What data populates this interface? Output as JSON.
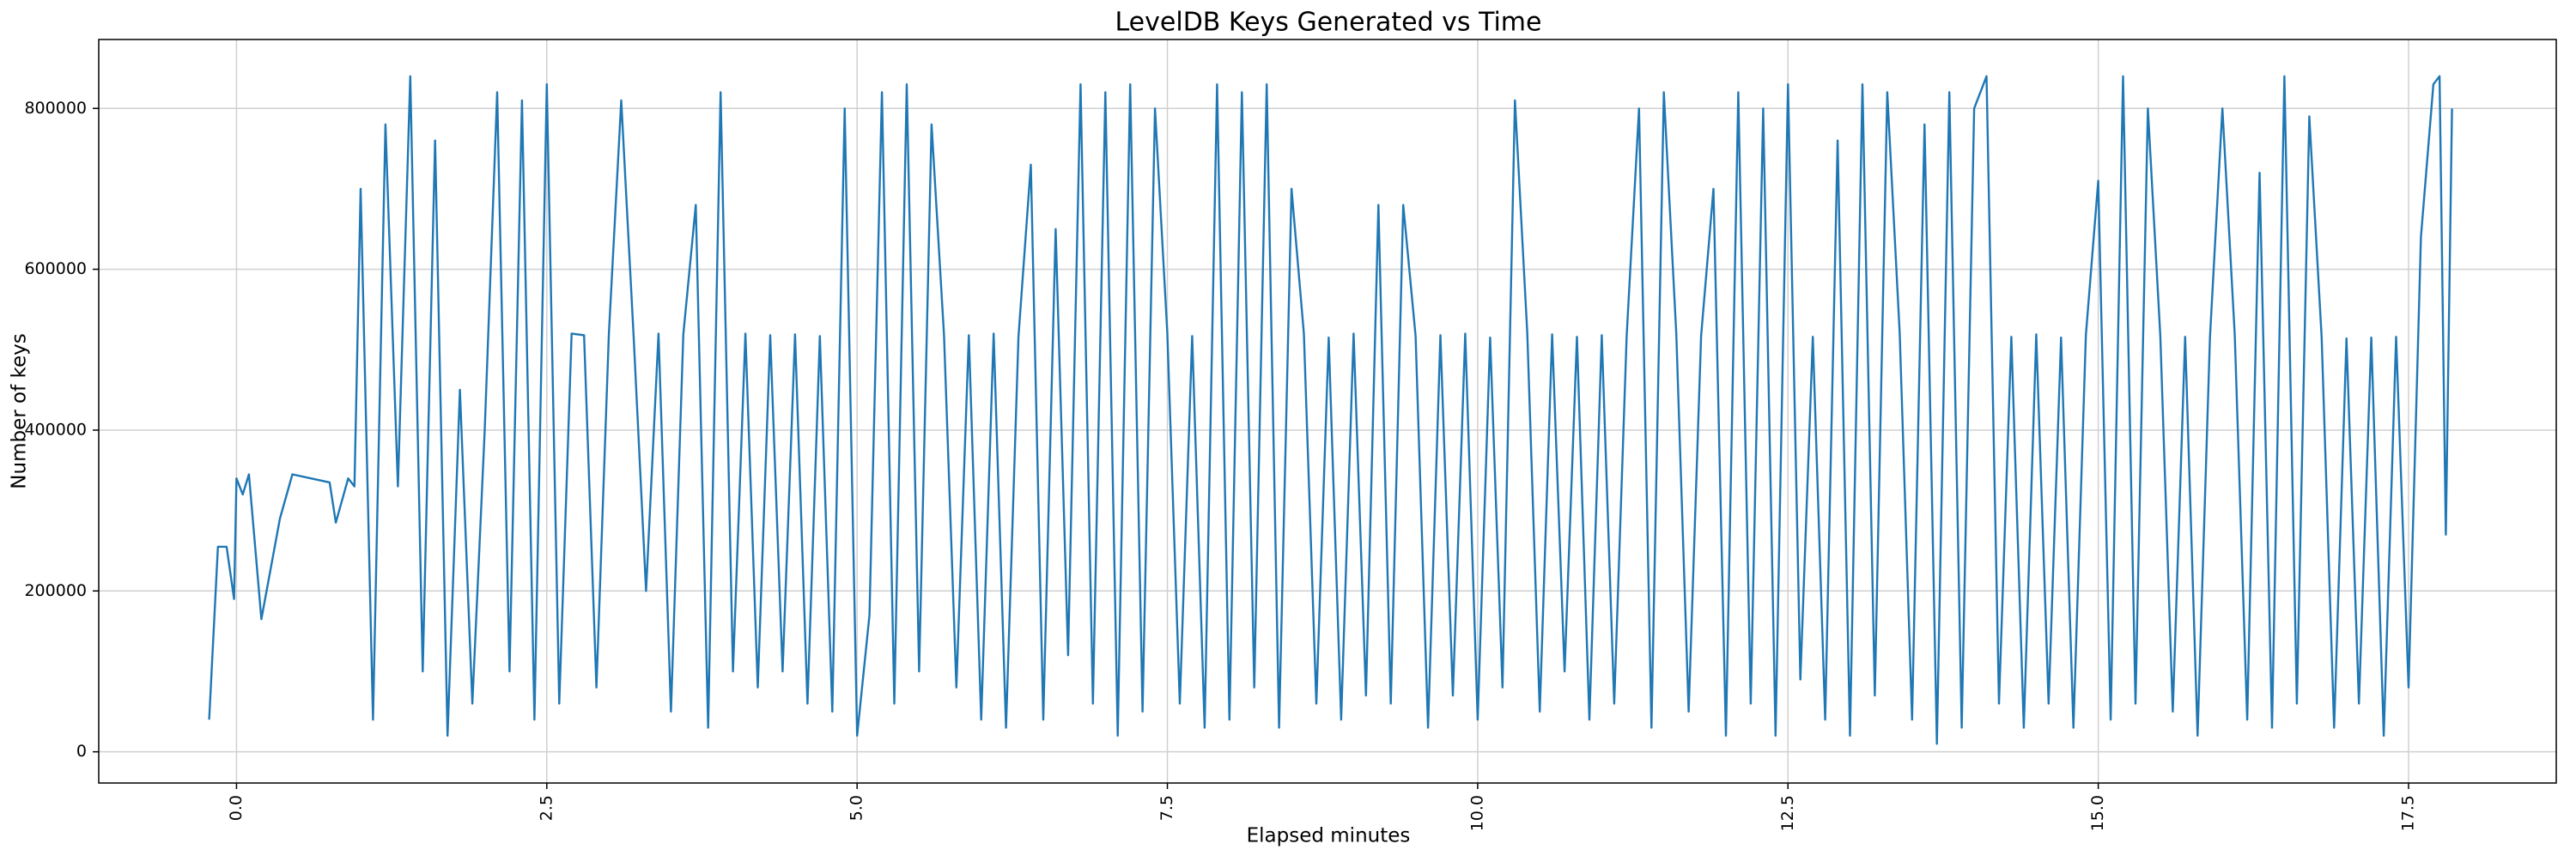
{
  "chart_data": {
    "type": "line",
    "title": "LevelDB Keys Generated vs Time",
    "x_label": "Elapsed minutes",
    "y_label": "Number of keys",
    "color": "#1f77b4",
    "grid": true,
    "xlim": [
      -1.11,
      18.69
    ],
    "ylim": [
      -38800,
      885700
    ],
    "xticks": [
      {
        "value": 0,
        "label": "0.0"
      },
      2.5,
      {
        "value": 5,
        "label": "5.0"
      },
      7.5,
      {
        "value": 10,
        "label": "10.0"
      },
      12.5,
      {
        "value": 15,
        "label": "15.0"
      },
      17.5
    ],
    "yticks": [
      0,
      200000,
      400000,
      600000,
      800000
    ],
    "x": [
      -0.22,
      -0.15,
      -0.08,
      -0.02,
      0.0,
      0.05,
      0.1,
      0.2,
      0.35,
      0.45,
      0.6,
      0.75,
      0.8,
      0.9,
      0.95,
      1.0,
      1.1,
      1.2,
      1.3,
      1.4,
      1.5,
      1.6,
      1.7,
      1.8,
      1.9,
      2.0,
      2.1,
      2.2,
      2.3,
      2.4,
      2.5,
      2.6,
      2.7,
      2.8,
      2.9,
      3.0,
      3.1,
      3.2,
      3.3,
      3.4,
      3.5,
      3.6,
      3.7,
      3.8,
      3.9,
      4.0,
      4.1,
      4.2,
      4.3,
      4.4,
      4.5,
      4.6,
      4.7,
      4.8,
      4.9,
      5.0,
      5.1,
      5.2,
      5.3,
      5.4,
      5.5,
      5.6,
      5.7,
      5.8,
      5.9,
      6.0,
      6.1,
      6.2,
      6.3,
      6.4,
      6.5,
      6.6,
      6.7,
      6.8,
      6.9,
      7.0,
      7.1,
      7.2,
      7.3,
      7.4,
      7.5,
      7.6,
      7.7,
      7.8,
      7.9,
      8.0,
      8.1,
      8.2,
      8.3,
      8.4,
      8.5,
      8.6,
      8.7,
      8.8,
      8.9,
      9.0,
      9.1,
      9.2,
      9.3,
      9.4,
      9.5,
      9.6,
      9.7,
      9.8,
      9.9,
      10.0,
      10.1,
      10.2,
      10.3,
      10.4,
      10.5,
      10.6,
      10.7,
      10.8,
      10.9,
      11.0,
      11.1,
      11.2,
      11.3,
      11.4,
      11.5,
      11.6,
      11.7,
      11.8,
      11.9,
      12.0,
      12.1,
      12.2,
      12.3,
      12.4,
      12.5,
      12.6,
      12.7,
      12.8,
      12.9,
      13.0,
      13.1,
      13.2,
      13.3,
      13.4,
      13.5,
      13.6,
      13.7,
      13.8,
      13.9,
      14.0,
      14.1,
      14.2,
      14.3,
      14.4,
      14.5,
      14.6,
      14.7,
      14.8,
      14.9,
      15.0,
      15.1,
      15.2,
      15.3,
      15.4,
      15.5,
      15.6,
      15.7,
      15.8,
      15.9,
      16.0,
      16.1,
      16.2,
      16.3,
      16.4,
      16.5,
      16.6,
      16.7,
      16.8,
      16.9,
      17.0,
      17.1,
      17.2,
      17.3,
      17.4,
      17.5,
      17.6,
      17.7,
      17.75,
      17.8,
      17.85
    ],
    "values": [
      40000,
      255000,
      255000,
      190000,
      340000,
      320000,
      345000,
      165000,
      290000,
      345000,
      340000,
      335000,
      285000,
      340000,
      330000,
      700000,
      40000,
      780000,
      330000,
      840000,
      100000,
      760000,
      20000,
      450000,
      60000,
      400000,
      820000,
      100000,
      810000,
      40000,
      830000,
      60000,
      520000,
      518000,
      80000,
      520000,
      810000,
      515000,
      200000,
      520000,
      50000,
      519000,
      680000,
      30000,
      820000,
      100000,
      520000,
      80000,
      518000,
      100000,
      519000,
      60000,
      517000,
      50000,
      800000,
      20000,
      170000,
      820000,
      60000,
      830000,
      100000,
      780000,
      518000,
      80000,
      518000,
      40000,
      520000,
      30000,
      516000,
      730000,
      40000,
      650000,
      120000,
      830000,
      60000,
      820000,
      20000,
      830000,
      50000,
      800000,
      520000,
      60000,
      517000,
      30000,
      830000,
      40000,
      820000,
      80000,
      830000,
      30000,
      700000,
      520000,
      60000,
      515000,
      40000,
      520000,
      70000,
      680000,
      60000,
      680000,
      517000,
      30000,
      518000,
      70000,
      520000,
      40000,
      515000,
      80000,
      810000,
      520000,
      50000,
      519000,
      100000,
      516000,
      40000,
      518000,
      60000,
      517000,
      800000,
      30000,
      820000,
      520000,
      50000,
      517000,
      700000,
      20000,
      820000,
      60000,
      800000,
      20000,
      830000,
      90000,
      516000,
      40000,
      760000,
      20000,
      830000,
      70000,
      820000,
      520000,
      40000,
      780000,
      10000,
      820000,
      30000,
      800000,
      840000,
      60000,
      516000,
      30000,
      519000,
      60000,
      515000,
      30000,
      518000,
      710000,
      40000,
      840000,
      60000,
      800000,
      517000,
      50000,
      516000,
      20000,
      515000,
      800000,
      518000,
      40000,
      720000,
      30000,
      840000,
      60000,
      790000,
      515000,
      30000,
      514000,
      60000,
      515000,
      20000,
      516000,
      80000,
      640000,
      830000,
      840000,
      270000,
      800000
    ]
  }
}
